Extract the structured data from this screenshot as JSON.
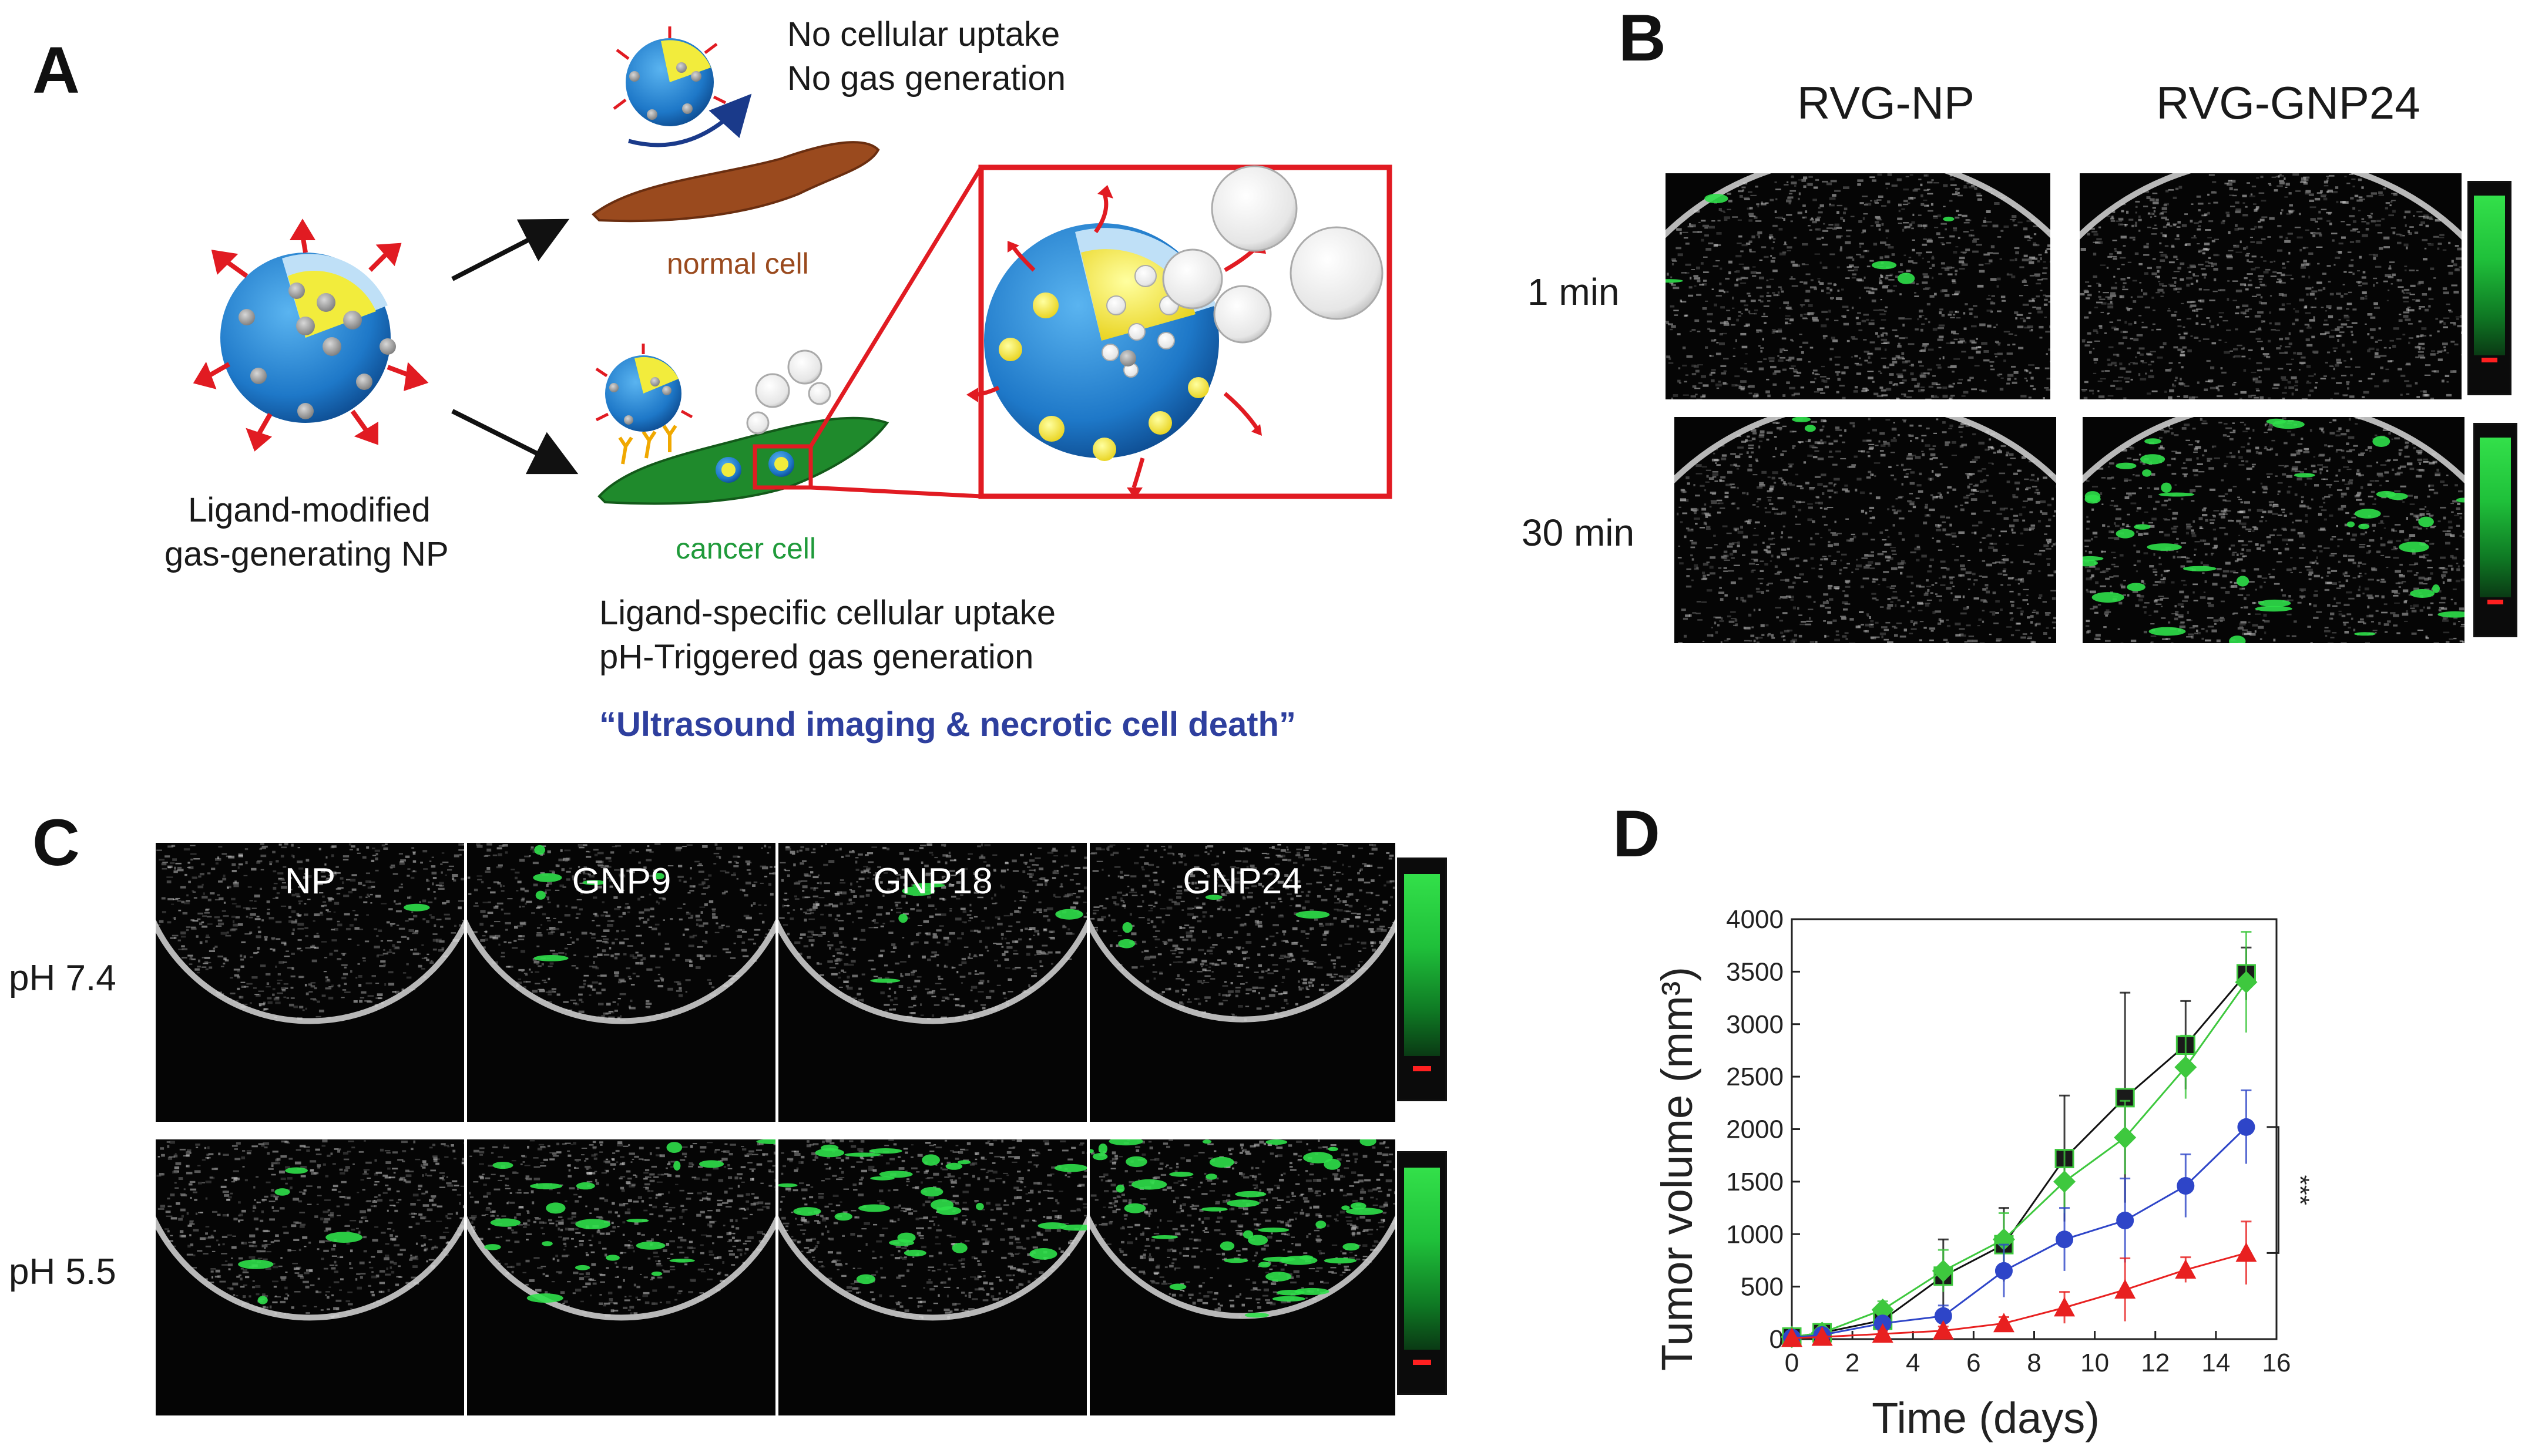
{
  "panel_a": {
    "label": "A",
    "np_label_line1": "Ligand-modified",
    "np_label_line2": "gas-generating NP",
    "normal_line1": "No cellular uptake",
    "normal_line2": "No gas generation",
    "normal_cell": "normal cell",
    "cancer_cell": "cancer cell",
    "cancer_line1": "Ligand-specific cellular uptake",
    "cancer_line2": "pH-Triggered gas generation",
    "quote": "“Ultrasound imaging & necrotic cell death”",
    "colors": {
      "shell": "#1e78c8",
      "core": "#f2ec3c",
      "arrow": "#e11b22",
      "normal_cell": "#9a4a1e",
      "cancer_cell": "#1f8a2c",
      "quote": "#2e3f9e"
    }
  },
  "panel_b": {
    "label": "B",
    "col1": "RVG-NP",
    "col2": "RVG-GNP24",
    "row1": "1 min",
    "row2": "30 min"
  },
  "panel_c": {
    "label": "C",
    "columns": [
      "NP",
      "GNP9",
      "GNP18",
      "GNP24"
    ],
    "row1": "pH 7.4",
    "row2": "pH 5.5"
  },
  "panel_d": {
    "label": "D",
    "chart_data": {
      "type": "line",
      "xlabel": "Time (days)",
      "ylabel": "Tumor volume  (mm³)",
      "xlim": [
        0,
        16
      ],
      "ylim": [
        0,
        4000
      ],
      "xticks": [
        0,
        2,
        4,
        6,
        8,
        10,
        12,
        14,
        16
      ],
      "yticks": [
        0,
        500,
        1000,
        1500,
        2000,
        2500,
        3000,
        3500,
        4000
      ],
      "significance": "***",
      "series": [
        {
          "color": "#111111",
          "marker": "square",
          "x": [
            0,
            1,
            3,
            5,
            7,
            9,
            11,
            13,
            15
          ],
          "values": [
            20,
            60,
            180,
            600,
            900,
            1720,
            2300,
            2800,
            3480
          ],
          "err": [
            10,
            20,
            60,
            350,
            350,
            600,
            1000,
            420,
            250
          ]
        },
        {
          "color": "#3ec83e",
          "marker": "diamond",
          "x": [
            0,
            1,
            3,
            5,
            7,
            9,
            11,
            13,
            15
          ],
          "values": [
            20,
            60,
            280,
            650,
            950,
            1500,
            1920,
            2590,
            3400
          ],
          "err": [
            10,
            20,
            80,
            200,
            250,
            300,
            350,
            300,
            480
          ]
        },
        {
          "color": "#2e45c8",
          "marker": "circle",
          "x": [
            0,
            1,
            3,
            5,
            7,
            9,
            11,
            13,
            15
          ],
          "values": [
            15,
            40,
            150,
            220,
            650,
            950,
            1130,
            1460,
            2020
          ],
          "err": [
            10,
            15,
            50,
            100,
            250,
            300,
            400,
            300,
            350
          ]
        },
        {
          "color": "#e82020",
          "marker": "triangle",
          "x": [
            0,
            1,
            3,
            5,
            7,
            9,
            11,
            13,
            15
          ],
          "values": [
            10,
            20,
            50,
            80,
            150,
            300,
            470,
            660,
            820
          ],
          "err": [
            5,
            10,
            30,
            40,
            60,
            150,
            300,
            120,
            300
          ]
        }
      ]
    }
  }
}
